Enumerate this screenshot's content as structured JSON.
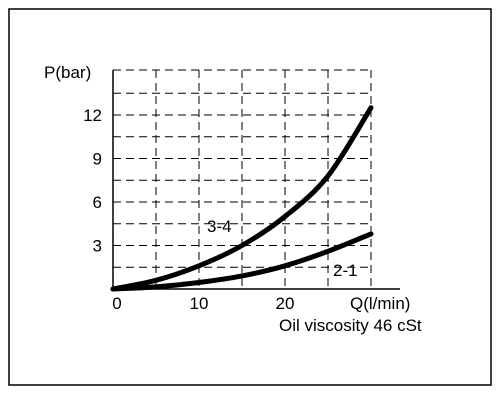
{
  "chart_data": {
    "type": "line",
    "ylabel": "P(bar)",
    "xlabel": "Q(l/min)",
    "note": "Oil viscosity 46 cSt",
    "x_ticks": [
      0,
      10,
      20
    ],
    "y_ticks": [
      3,
      6,
      9,
      12
    ],
    "xlim": [
      0,
      30
    ],
    "ylim": [
      0,
      12
    ],
    "grid": true,
    "grid_style": "dashed",
    "series": [
      {
        "name": "3-4",
        "x": [
          0,
          5,
          10,
          15,
          20,
          25,
          30
        ],
        "y": [
          0,
          0.6,
          1.6,
          3.0,
          5.0,
          7.8,
          12.5
        ]
      },
      {
        "name": "2-1",
        "x": [
          0,
          5,
          10,
          15,
          20,
          25,
          30
        ],
        "y": [
          0,
          0.15,
          0.45,
          0.9,
          1.6,
          2.6,
          3.8
        ]
      }
    ]
  },
  "colors": {
    "line": "#000000",
    "grid": "#000000",
    "background": "#ffffff"
  }
}
